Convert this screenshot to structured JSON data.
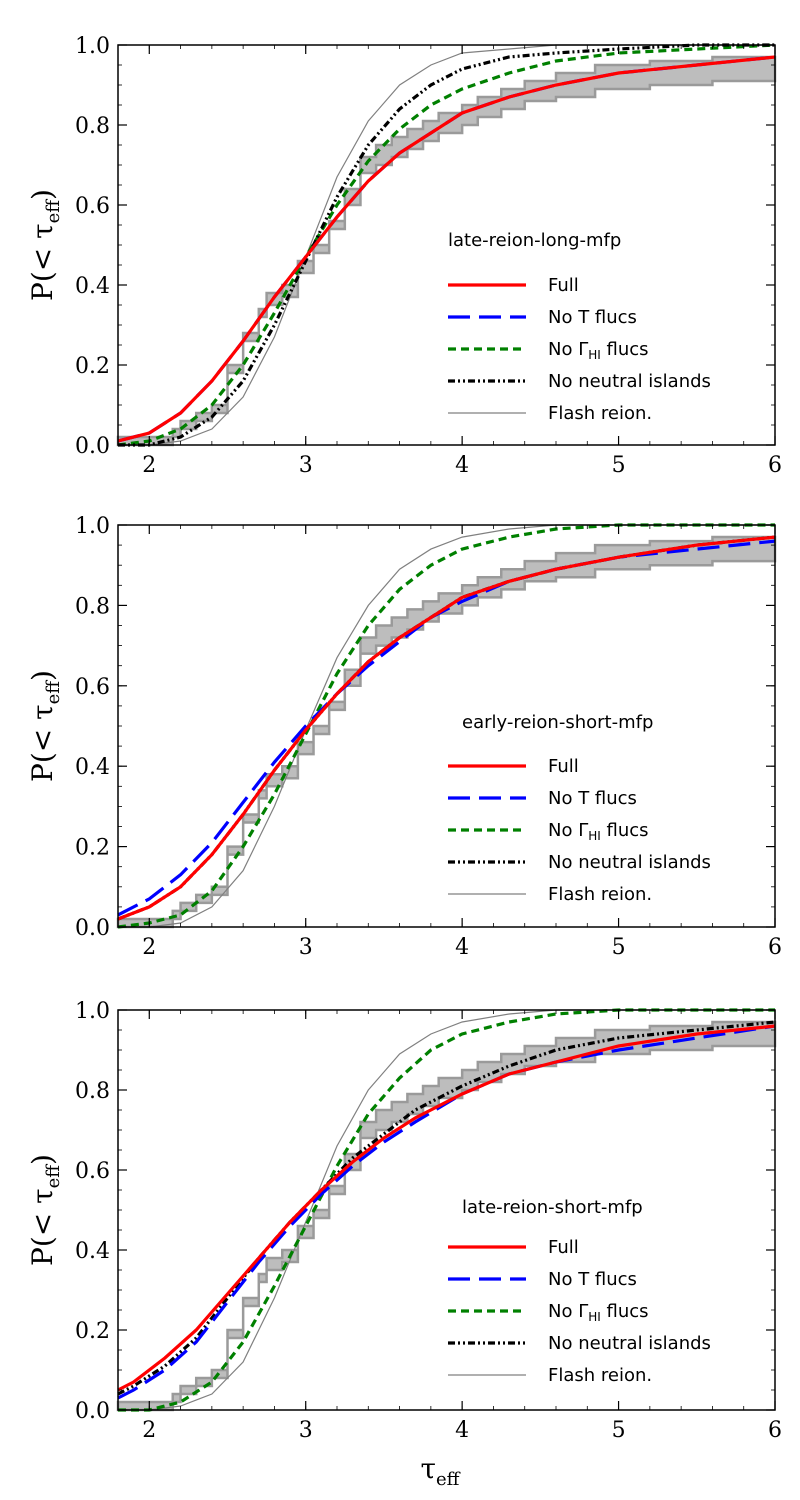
{
  "figure": {
    "ylabel_main": "P(< τ",
    "ylabel_sub": "eff",
    "ylabel_close": ")",
    "xlabel_main": "τ",
    "xlabel_sub": "eff"
  },
  "chart_data": [
    {
      "type": "line",
      "title": "late-reion-long-mfp",
      "xlabel": "τ_eff",
      "ylabel": "P(< τ_eff)",
      "xlim": [
        1.8,
        6
      ],
      "ylim": [
        0,
        1
      ],
      "xticks": [
        "2",
        "3",
        "4",
        "5",
        "6"
      ],
      "yticks": [
        "0.0",
        "0.2",
        "0.4",
        "0.6",
        "0.8",
        "1.0"
      ],
      "legend_position": "center-right",
      "observed_band": {
        "x": [
          1.8,
          2.0,
          2.15,
          2.2,
          2.3,
          2.4,
          2.5,
          2.6,
          2.7,
          2.75,
          2.85,
          2.95,
          3.05,
          3.15,
          3.25,
          3.35,
          3.45,
          3.55,
          3.65,
          3.75,
          3.85,
          4.0,
          4.1,
          4.25,
          4.4,
          4.6,
          4.85,
          5.2,
          5.6,
          6.0
        ],
        "lower": [
          0.0,
          0.0,
          0.02,
          0.04,
          0.06,
          0.08,
          0.18,
          0.26,
          0.32,
          0.35,
          0.37,
          0.43,
          0.48,
          0.54,
          0.6,
          0.68,
          0.7,
          0.72,
          0.74,
          0.76,
          0.78,
          0.8,
          0.82,
          0.84,
          0.86,
          0.87,
          0.89,
          0.9,
          0.91,
          0.91
        ],
        "upper": [
          0.02,
          0.02,
          0.04,
          0.06,
          0.08,
          0.1,
          0.2,
          0.28,
          0.34,
          0.38,
          0.4,
          0.46,
          0.5,
          0.56,
          0.64,
          0.72,
          0.75,
          0.77,
          0.79,
          0.81,
          0.83,
          0.85,
          0.87,
          0.89,
          0.91,
          0.93,
          0.95,
          0.96,
          0.97,
          0.97
        ]
      },
      "series": [
        {
          "name": "Full",
          "color": "#ff0000",
          "style": "solid",
          "x": [
            1.8,
            2.0,
            2.2,
            2.4,
            2.6,
            2.8,
            3.0,
            3.2,
            3.4,
            3.6,
            3.8,
            4.0,
            4.3,
            4.6,
            5.0,
            5.5,
            6.0
          ],
          "y": [
            0.01,
            0.03,
            0.08,
            0.16,
            0.26,
            0.37,
            0.47,
            0.57,
            0.66,
            0.73,
            0.78,
            0.83,
            0.87,
            0.9,
            0.93,
            0.95,
            0.97
          ]
        },
        {
          "name": "No T flucs",
          "color": "#0000ff",
          "style": "longdash",
          "x": [
            1.8,
            2.0,
            2.2,
            2.4,
            2.6,
            2.8,
            3.0,
            3.2,
            3.4,
            3.6,
            3.8,
            4.0,
            4.3,
            4.6,
            5.0,
            5.5,
            6.0
          ],
          "y": [
            0.01,
            0.03,
            0.08,
            0.16,
            0.26,
            0.37,
            0.47,
            0.57,
            0.66,
            0.73,
            0.78,
            0.83,
            0.87,
            0.9,
            0.93,
            0.95,
            0.97
          ]
        },
        {
          "name": "No Γ_HI flucs",
          "color": "#008000",
          "style": "dashed",
          "x": [
            1.8,
            2.0,
            2.2,
            2.4,
            2.6,
            2.8,
            3.0,
            3.2,
            3.4,
            3.6,
            3.8,
            4.0,
            4.3,
            4.6,
            5.0,
            5.5,
            6.0
          ],
          "y": [
            0.0,
            0.01,
            0.04,
            0.1,
            0.2,
            0.33,
            0.47,
            0.6,
            0.71,
            0.79,
            0.85,
            0.89,
            0.93,
            0.96,
            0.98,
            0.99,
            1.0
          ]
        },
        {
          "name": "No neutral islands",
          "color": "#000000",
          "style": "dashdotdot",
          "x": [
            1.8,
            2.0,
            2.2,
            2.4,
            2.6,
            2.8,
            3.0,
            3.2,
            3.4,
            3.6,
            3.8,
            4.0,
            4.3,
            4.6,
            5.0,
            5.5,
            6.0
          ],
          "y": [
            0.0,
            0.0,
            0.02,
            0.07,
            0.16,
            0.3,
            0.46,
            0.62,
            0.75,
            0.84,
            0.9,
            0.94,
            0.97,
            0.98,
            0.99,
            1.0,
            1.0
          ]
        },
        {
          "name": "Flash reion.",
          "color": "#808080",
          "style": "thin",
          "x": [
            1.8,
            2.0,
            2.2,
            2.4,
            2.6,
            2.8,
            3.0,
            3.2,
            3.4,
            3.6,
            3.8,
            4.0,
            4.3,
            4.6,
            5.0,
            5.5,
            6.0
          ],
          "y": [
            0.0,
            0.0,
            0.01,
            0.04,
            0.12,
            0.27,
            0.47,
            0.67,
            0.81,
            0.9,
            0.95,
            0.98,
            0.99,
            1.0,
            1.0,
            1.0,
            1.0
          ]
        }
      ]
    },
    {
      "type": "line",
      "title": "early-reion-short-mfp",
      "xlabel": "τ_eff",
      "ylabel": "P(< τ_eff)",
      "xlim": [
        1.8,
        6
      ],
      "ylim": [
        0,
        1
      ],
      "xticks": [
        "2",
        "3",
        "4",
        "5",
        "6"
      ],
      "yticks": [
        "0.0",
        "0.2",
        "0.4",
        "0.6",
        "0.8",
        "1.0"
      ],
      "legend_position": "lower-right",
      "observed_band": {
        "x": [
          1.8,
          2.0,
          2.15,
          2.2,
          2.3,
          2.4,
          2.5,
          2.6,
          2.7,
          2.75,
          2.85,
          2.95,
          3.05,
          3.15,
          3.25,
          3.35,
          3.45,
          3.55,
          3.65,
          3.75,
          3.85,
          4.0,
          4.1,
          4.25,
          4.4,
          4.6,
          4.85,
          5.2,
          5.6,
          6.0
        ],
        "lower": [
          0.0,
          0.0,
          0.02,
          0.04,
          0.06,
          0.08,
          0.18,
          0.26,
          0.32,
          0.35,
          0.37,
          0.43,
          0.48,
          0.54,
          0.6,
          0.68,
          0.7,
          0.72,
          0.74,
          0.76,
          0.78,
          0.8,
          0.82,
          0.84,
          0.86,
          0.87,
          0.89,
          0.9,
          0.91,
          0.91
        ],
        "upper": [
          0.02,
          0.02,
          0.04,
          0.06,
          0.08,
          0.1,
          0.2,
          0.28,
          0.34,
          0.38,
          0.4,
          0.46,
          0.5,
          0.56,
          0.64,
          0.72,
          0.75,
          0.77,
          0.79,
          0.81,
          0.83,
          0.85,
          0.87,
          0.89,
          0.91,
          0.93,
          0.95,
          0.96,
          0.97,
          0.97
        ]
      },
      "series": [
        {
          "name": "Full",
          "color": "#ff0000",
          "style": "solid",
          "x": [
            1.8,
            2.0,
            2.2,
            2.4,
            2.6,
            2.8,
            3.0,
            3.2,
            3.4,
            3.6,
            3.8,
            4.0,
            4.3,
            4.6,
            5.0,
            5.5,
            6.0
          ],
          "y": [
            0.02,
            0.05,
            0.1,
            0.18,
            0.28,
            0.39,
            0.49,
            0.58,
            0.66,
            0.72,
            0.77,
            0.82,
            0.86,
            0.89,
            0.92,
            0.95,
            0.97
          ]
        },
        {
          "name": "No T flucs",
          "color": "#0000ff",
          "style": "longdash",
          "x": [
            1.8,
            2.0,
            2.2,
            2.4,
            2.6,
            2.8,
            3.0,
            3.2,
            3.4,
            3.6,
            3.8,
            4.0,
            4.3,
            4.6,
            5.0,
            5.5,
            6.0
          ],
          "y": [
            0.03,
            0.07,
            0.13,
            0.21,
            0.31,
            0.41,
            0.5,
            0.58,
            0.65,
            0.71,
            0.77,
            0.81,
            0.86,
            0.89,
            0.92,
            0.94,
            0.96
          ]
        },
        {
          "name": "No Γ_HI flucs",
          "color": "#008000",
          "style": "dashed",
          "x": [
            1.8,
            2.0,
            2.2,
            2.4,
            2.6,
            2.8,
            3.0,
            3.2,
            3.4,
            3.6,
            3.8,
            4.0,
            4.3,
            4.6,
            5.0,
            5.5,
            6.0
          ],
          "y": [
            0.0,
            0.01,
            0.03,
            0.09,
            0.2,
            0.33,
            0.48,
            0.63,
            0.75,
            0.84,
            0.9,
            0.94,
            0.97,
            0.99,
            1.0,
            1.0,
            1.0
          ]
        },
        {
          "name": "No neutral islands",
          "color": "#000000",
          "style": "dashdotdot",
          "x": [
            1.8,
            2.0,
            2.2,
            2.4,
            2.6,
            2.8,
            3.0,
            3.2,
            3.4,
            3.6,
            3.8,
            4.0,
            4.3,
            4.6,
            5.0,
            5.5,
            6.0
          ],
          "y": [
            0.02,
            0.05,
            0.1,
            0.18,
            0.28,
            0.39,
            0.49,
            0.58,
            0.66,
            0.72,
            0.77,
            0.82,
            0.86,
            0.89,
            0.92,
            0.95,
            0.97
          ]
        },
        {
          "name": "Flash reion.",
          "color": "#808080",
          "style": "thin",
          "x": [
            1.8,
            2.0,
            2.2,
            2.4,
            2.6,
            2.8,
            3.0,
            3.2,
            3.4,
            3.6,
            3.8,
            4.0,
            4.3,
            4.6,
            5.0,
            5.5,
            6.0
          ],
          "y": [
            0.0,
            0.0,
            0.01,
            0.05,
            0.14,
            0.3,
            0.49,
            0.67,
            0.8,
            0.89,
            0.94,
            0.97,
            0.99,
            1.0,
            1.0,
            1.0,
            1.0
          ]
        }
      ]
    },
    {
      "type": "line",
      "title": "late-reion-short-mfp",
      "xlabel": "τ_eff",
      "ylabel": "P(< τ_eff)",
      "xlim": [
        1.8,
        6
      ],
      "ylim": [
        0,
        1
      ],
      "xticks": [
        "2",
        "3",
        "4",
        "5",
        "6"
      ],
      "yticks": [
        "0.0",
        "0.2",
        "0.4",
        "0.6",
        "0.8",
        "1.0"
      ],
      "legend_position": "lower-right",
      "observed_band": {
        "x": [
          1.8,
          2.0,
          2.15,
          2.2,
          2.3,
          2.4,
          2.5,
          2.6,
          2.7,
          2.75,
          2.85,
          2.95,
          3.05,
          3.15,
          3.25,
          3.35,
          3.45,
          3.55,
          3.65,
          3.75,
          3.85,
          4.0,
          4.1,
          4.25,
          4.4,
          4.6,
          4.85,
          5.2,
          5.6,
          6.0
        ],
        "lower": [
          0.0,
          0.0,
          0.02,
          0.04,
          0.06,
          0.08,
          0.18,
          0.26,
          0.32,
          0.35,
          0.37,
          0.43,
          0.48,
          0.54,
          0.6,
          0.68,
          0.7,
          0.72,
          0.74,
          0.76,
          0.78,
          0.8,
          0.82,
          0.84,
          0.86,
          0.87,
          0.89,
          0.9,
          0.91,
          0.91
        ],
        "upper": [
          0.02,
          0.02,
          0.04,
          0.06,
          0.08,
          0.1,
          0.2,
          0.28,
          0.34,
          0.38,
          0.4,
          0.46,
          0.5,
          0.56,
          0.64,
          0.72,
          0.75,
          0.77,
          0.79,
          0.81,
          0.83,
          0.85,
          0.87,
          0.89,
          0.91,
          0.93,
          0.95,
          0.96,
          0.97,
          0.97
        ]
      },
      "series": [
        {
          "name": "Full",
          "color": "#ff0000",
          "style": "solid",
          "x": [
            1.8,
            1.9,
            2.1,
            2.3,
            2.5,
            2.7,
            2.9,
            3.1,
            3.3,
            3.5,
            3.7,
            4.0,
            4.3,
            4.6,
            5.0,
            5.5,
            6.0
          ],
          "y": [
            0.05,
            0.07,
            0.13,
            0.2,
            0.29,
            0.38,
            0.47,
            0.55,
            0.62,
            0.68,
            0.73,
            0.79,
            0.84,
            0.87,
            0.91,
            0.94,
            0.96
          ]
        },
        {
          "name": "No T flucs",
          "color": "#0000ff",
          "style": "longdash",
          "x": [
            1.8,
            1.9,
            2.1,
            2.3,
            2.5,
            2.7,
            2.9,
            3.1,
            3.3,
            3.5,
            3.7,
            4.0,
            4.3,
            4.6,
            5.0,
            5.5,
            6.0
          ],
          "y": [
            0.03,
            0.05,
            0.1,
            0.17,
            0.27,
            0.37,
            0.46,
            0.54,
            0.61,
            0.67,
            0.72,
            0.79,
            0.84,
            0.87,
            0.9,
            0.93,
            0.96
          ]
        },
        {
          "name": "No Γ_HI flucs",
          "color": "#008000",
          "style": "dashed",
          "x": [
            1.8,
            2.0,
            2.2,
            2.4,
            2.6,
            2.8,
            3.0,
            3.2,
            3.4,
            3.6,
            3.8,
            4.0,
            4.3,
            4.6,
            5.0,
            5.5,
            6.0
          ],
          "y": [
            0.0,
            0.0,
            0.02,
            0.07,
            0.17,
            0.31,
            0.46,
            0.61,
            0.74,
            0.83,
            0.9,
            0.94,
            0.97,
            0.99,
            1.0,
            1.0,
            1.0
          ]
        },
        {
          "name": "No neutral islands",
          "color": "#000000",
          "style": "dashdotdot",
          "x": [
            1.8,
            1.9,
            2.1,
            2.3,
            2.5,
            2.7,
            2.9,
            3.1,
            3.3,
            3.5,
            3.7,
            4.0,
            4.3,
            4.6,
            5.0,
            5.5,
            6.0
          ],
          "y": [
            0.04,
            0.06,
            0.11,
            0.18,
            0.28,
            0.38,
            0.47,
            0.55,
            0.63,
            0.69,
            0.75,
            0.81,
            0.86,
            0.9,
            0.93,
            0.95,
            0.97
          ]
        },
        {
          "name": "Flash reion.",
          "color": "#808080",
          "style": "thin",
          "x": [
            1.8,
            2.0,
            2.2,
            2.4,
            2.6,
            2.8,
            3.0,
            3.2,
            3.4,
            3.6,
            3.8,
            4.0,
            4.3,
            4.6,
            5.0,
            5.5,
            6.0
          ],
          "y": [
            0.0,
            0.0,
            0.01,
            0.04,
            0.12,
            0.28,
            0.47,
            0.66,
            0.8,
            0.89,
            0.94,
            0.97,
            0.99,
            1.0,
            1.0,
            1.0,
            1.0
          ]
        }
      ]
    }
  ]
}
